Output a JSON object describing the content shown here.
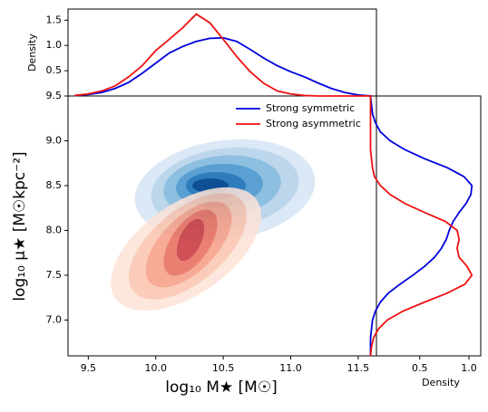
{
  "chart_data": [
    {
      "type": "kde2d",
      "xlabel": "log₁₀ M★ [M☉]",
      "ylabel": "log₁₀ μ★ [M☉kpc⁻²]",
      "xlim": [
        9.35,
        11.635
      ],
      "ylim": [
        6.6,
        9.5
      ],
      "xticks": [
        9.5,
        {
          "value": 10,
          "label": "10.0"
        },
        10.5,
        {
          "value": 11,
          "label": "11.0"
        },
        11.5
      ],
      "yticks": [
        {
          "value": 7,
          "label": "7.0"
        },
        7.5,
        {
          "value": 8,
          "label": "8.0"
        },
        8.5,
        {
          "value": 9,
          "label": "9.0"
        },
        9.5
      ],
      "legend": "upper right"
    },
    {
      "type": "line",
      "ylabel": "Density",
      "xlim": [
        9.35,
        11.635
      ],
      "ylim": [
        0,
        1.72
      ],
      "yticks": [
        0.5,
        {
          "value": 1,
          "label": "1.0"
        },
        1.5
      ],
      "x": [
        9.4,
        9.5,
        9.6,
        9.7,
        9.8,
        9.9,
        10.0,
        10.1,
        10.2,
        10.3,
        10.4,
        10.5,
        10.6,
        10.7,
        10.8,
        10.9,
        11.0,
        11.1,
        11.2,
        11.3,
        11.4,
        11.5,
        11.6
      ],
      "series": [
        {
          "name": "Strong symmetric",
          "color": "#0000dd",
          "values": [
            0.01,
            0.03,
            0.07,
            0.15,
            0.27,
            0.45,
            0.65,
            0.85,
            0.98,
            1.08,
            1.14,
            1.15,
            1.08,
            0.92,
            0.75,
            0.6,
            0.48,
            0.38,
            0.26,
            0.15,
            0.07,
            0.02,
            0
          ]
        },
        {
          "name": "Strong asymmetric",
          "color": "#ee1111",
          "values": [
            0.01,
            0.04,
            0.1,
            0.2,
            0.38,
            0.6,
            0.9,
            1.12,
            1.35,
            1.62,
            1.45,
            1.12,
            0.78,
            0.48,
            0.25,
            0.1,
            0.04,
            0.01,
            0,
            0,
            0,
            0,
            0
          ]
        }
      ]
    },
    {
      "type": "hline",
      "xlabel": "Density",
      "xlim": [
        0.06,
        1.12
      ],
      "ylim": [
        6.6,
        9.5
      ],
      "xticks": [
        0.5,
        {
          "value": 1,
          "label": "1.0"
        }
      ],
      "y": [
        6.6,
        6.7,
        6.8,
        6.9,
        7.0,
        7.1,
        7.2,
        7.3,
        7.4,
        7.5,
        7.6,
        7.7,
        7.8,
        7.9,
        8.0,
        8.1,
        8.2,
        8.3,
        8.4,
        8.5,
        8.6,
        8.7,
        8.8,
        8.9,
        9.0,
        9.1,
        9.2,
        9.3,
        9.4,
        9.5
      ],
      "series": [
        {
          "color": "#0000dd",
          "values": [
            0,
            0,
            0,
            0.01,
            0.02,
            0.05,
            0.1,
            0.18,
            0.3,
            0.43,
            0.55,
            0.65,
            0.72,
            0.77,
            0.8,
            0.84,
            0.9,
            0.97,
            1.02,
            1.03,
            0.95,
            0.78,
            0.55,
            0.35,
            0.2,
            0.1,
            0.05,
            0.02,
            0.01,
            0
          ]
        },
        {
          "color": "#ee1111",
          "values": [
            0,
            0.01,
            0.03,
            0.08,
            0.17,
            0.33,
            0.55,
            0.78,
            0.96,
            1.03,
            0.98,
            0.9,
            0.88,
            0.9,
            0.88,
            0.76,
            0.55,
            0.35,
            0.2,
            0.1,
            0.04,
            0.02,
            0.01,
            0,
            0,
            0,
            0,
            0,
            0,
            0
          ]
        }
      ]
    }
  ]
}
